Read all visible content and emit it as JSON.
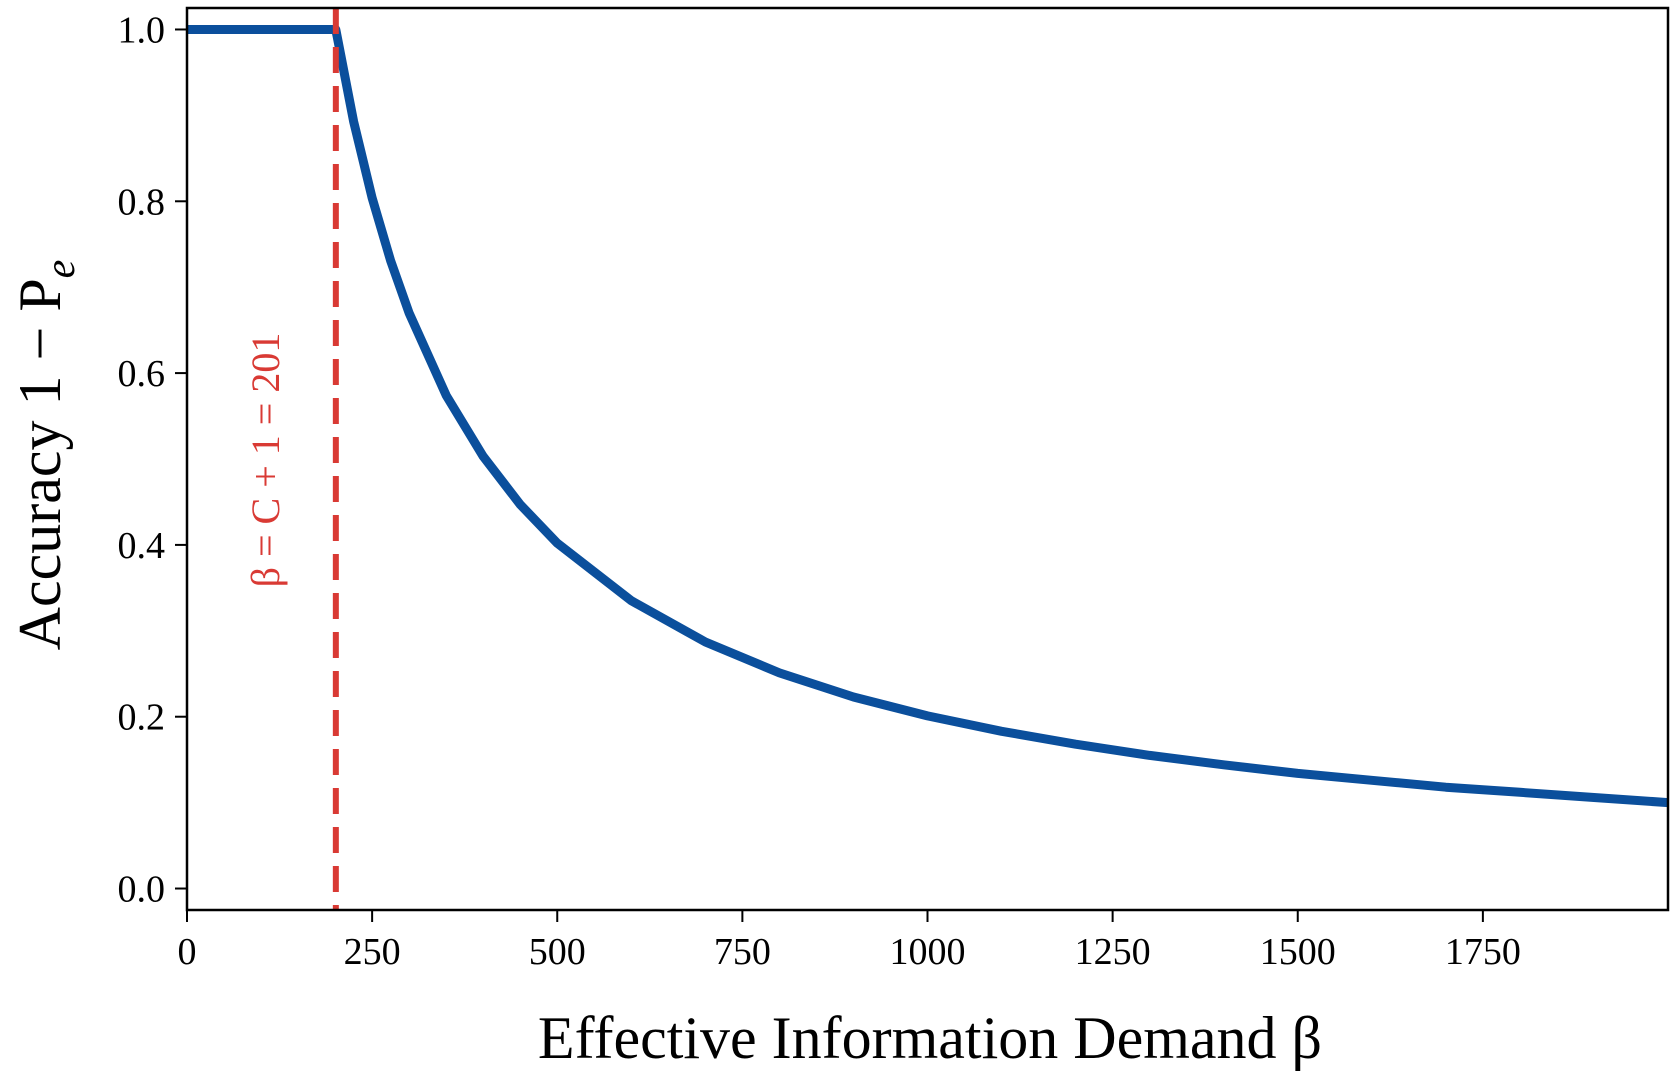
{
  "chart_data": {
    "type": "line",
    "title": "",
    "xlabel": "Effective Information Demand β",
    "ylabel": "Accuracy 1 − P",
    "ylabel_subscript": "e",
    "xlim": [
      0,
      2000
    ],
    "ylim": [
      -0.025,
      1.025
    ],
    "xticks": [
      0,
      250,
      500,
      750,
      1000,
      1250,
      1500,
      1750
    ],
    "xtick_labels": [
      "0",
      "250",
      "500",
      "750",
      "1000",
      "1250",
      "1500",
      "1750"
    ],
    "yticks": [
      0.0,
      0.2,
      0.4,
      0.6,
      0.8,
      1.0
    ],
    "ytick_labels": [
      "0.0",
      "0.2",
      "0.4",
      "0.6",
      "0.8",
      "1.0"
    ],
    "grid": false,
    "series": [
      {
        "color": "#0b4f9c",
        "x": [
          0,
          100,
          201,
          225,
          250,
          275,
          300,
          350,
          400,
          450,
          500,
          600,
          700,
          800,
          900,
          1000,
          1100,
          1200,
          1300,
          1400,
          1500,
          1600,
          1700,
          1800,
          1900,
          2000
        ],
        "y": [
          1.0,
          1.0,
          1.0,
          0.893,
          0.804,
          0.731,
          0.67,
          0.574,
          0.503,
          0.447,
          0.402,
          0.335,
          0.287,
          0.251,
          0.223,
          0.201,
          0.183,
          0.168,
          0.155,
          0.144,
          0.134,
          0.126,
          0.118,
          0.112,
          0.106,
          0.1
        ]
      }
    ],
    "vline": {
      "x": 201,
      "color": "#d93a34",
      "style": "dashed",
      "label": "β = C + 1 = 201"
    }
  }
}
